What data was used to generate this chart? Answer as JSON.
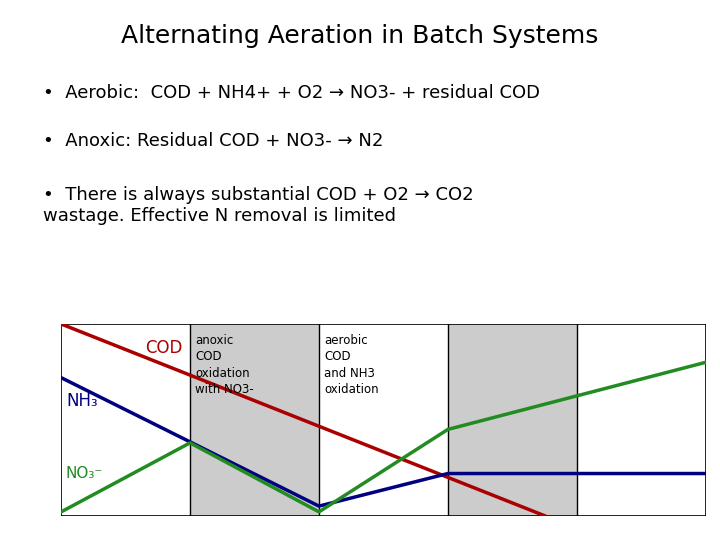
{
  "title": "Alternating Aeration in Batch Systems",
  "bullets": [
    "Aerobic:  COD + NH4+ + O2 → NO3- + residual COD",
    "Anoxic: Residual COD + NO3- → N2",
    "There is always substantial COD + O2 → CO2\nwastage. Effective N removal is limited"
  ],
  "bg_color": "#ffffff",
  "chart_bg_white": "#ffffff",
  "chart_bg_gray": "#cccccc",
  "box_border": "#000000",
  "title_fontsize": 18,
  "bullet_fontsize": 13,
  "col_labels_col1": "anoxic\nCOD\noxidation\nwith NO3-",
  "col_labels_col2": "aerobic\nCOD\nand NH3\noxidation",
  "label_COD": "COD",
  "label_NH3": "NH₃",
  "label_NO3": "NO₃⁻",
  "COD_color": "#aa0000",
  "NH3_color": "#000080",
  "NO3_color": "#228B22",
  "line_width": 2.5
}
